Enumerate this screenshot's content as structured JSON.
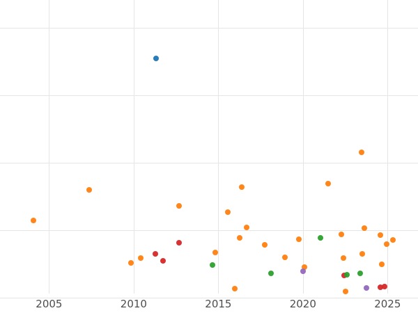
{
  "chart_data": {
    "type": "scatter",
    "title": "",
    "xlabel": "",
    "ylabel": "",
    "grid": true,
    "legend": "none",
    "x_range": [
      2002.1,
      2026.8
    ],
    "y_range": [
      -0.23,
      4.41
    ],
    "x_ticks": [
      {
        "label": "2005",
        "value": 2005
      },
      {
        "label": "2010",
        "value": 2010
      },
      {
        "label": "2015",
        "value": 2015
      },
      {
        "label": "2020",
        "value": 2020
      },
      {
        "label": "2025",
        "value": 2025
      }
    ],
    "y_gridline_values": [
      0,
      1,
      2,
      3,
      4
    ],
    "series": [
      {
        "name": "series-orange",
        "color": "#ff7f0e",
        "points": [
          {
            "x": 2004.06,
            "y": 1.14
          },
          {
            "x": 2007.38,
            "y": 1.6
          },
          {
            "x": 2009.85,
            "y": 0.51
          },
          {
            "x": 2010.42,
            "y": 0.58
          },
          {
            "x": 2012.68,
            "y": 1.36
          },
          {
            "x": 2014.82,
            "y": 0.67
          },
          {
            "x": 2015.55,
            "y": 1.27
          },
          {
            "x": 2015.96,
            "y": 0.13
          },
          {
            "x": 2016.25,
            "y": 0.88
          },
          {
            "x": 2016.37,
            "y": 1.64
          },
          {
            "x": 2016.66,
            "y": 1.04
          },
          {
            "x": 2017.73,
            "y": 0.78
          },
          {
            "x": 2018.92,
            "y": 0.6
          },
          {
            "x": 2019.74,
            "y": 0.86
          },
          {
            "x": 2020.07,
            "y": 0.45
          },
          {
            "x": 2021.47,
            "y": 1.69
          },
          {
            "x": 2022.29,
            "y": 0.94
          },
          {
            "x": 2022.41,
            "y": 0.59
          },
          {
            "x": 2022.53,
            "y": 0.09
          },
          {
            "x": 2023.48,
            "y": 2.15
          },
          {
            "x": 2023.52,
            "y": 0.65
          },
          {
            "x": 2023.64,
            "y": 1.03
          },
          {
            "x": 2024.59,
            "y": 0.93
          },
          {
            "x": 2024.67,
            "y": 0.49
          },
          {
            "x": 2024.96,
            "y": 0.79
          },
          {
            "x": 2025.33,
            "y": 0.85
          }
        ]
      },
      {
        "name": "series-blue",
        "color": "#1f77b4",
        "points": [
          {
            "x": 2011.32,
            "y": 3.54
          }
        ]
      },
      {
        "name": "series-red",
        "color": "#d62728",
        "points": [
          {
            "x": 2011.28,
            "y": 0.65
          },
          {
            "x": 2011.73,
            "y": 0.54
          },
          {
            "x": 2012.68,
            "y": 0.81
          },
          {
            "x": 2022.45,
            "y": 0.33
          },
          {
            "x": 2024.59,
            "y": 0.15
          },
          {
            "x": 2024.83,
            "y": 0.16
          }
        ]
      },
      {
        "name": "series-green",
        "color": "#2ca02c",
        "points": [
          {
            "x": 2014.65,
            "y": 0.48
          },
          {
            "x": 2018.1,
            "y": 0.36
          },
          {
            "x": 2021.02,
            "y": 0.88
          },
          {
            "x": 2022.58,
            "y": 0.34
          },
          {
            "x": 2023.4,
            "y": 0.36
          }
        ]
      },
      {
        "name": "series-purple",
        "color": "#9467bd",
        "points": [
          {
            "x": 2019.99,
            "y": 0.39
          },
          {
            "x": 2023.77,
            "y": 0.14
          }
        ]
      }
    ]
  }
}
